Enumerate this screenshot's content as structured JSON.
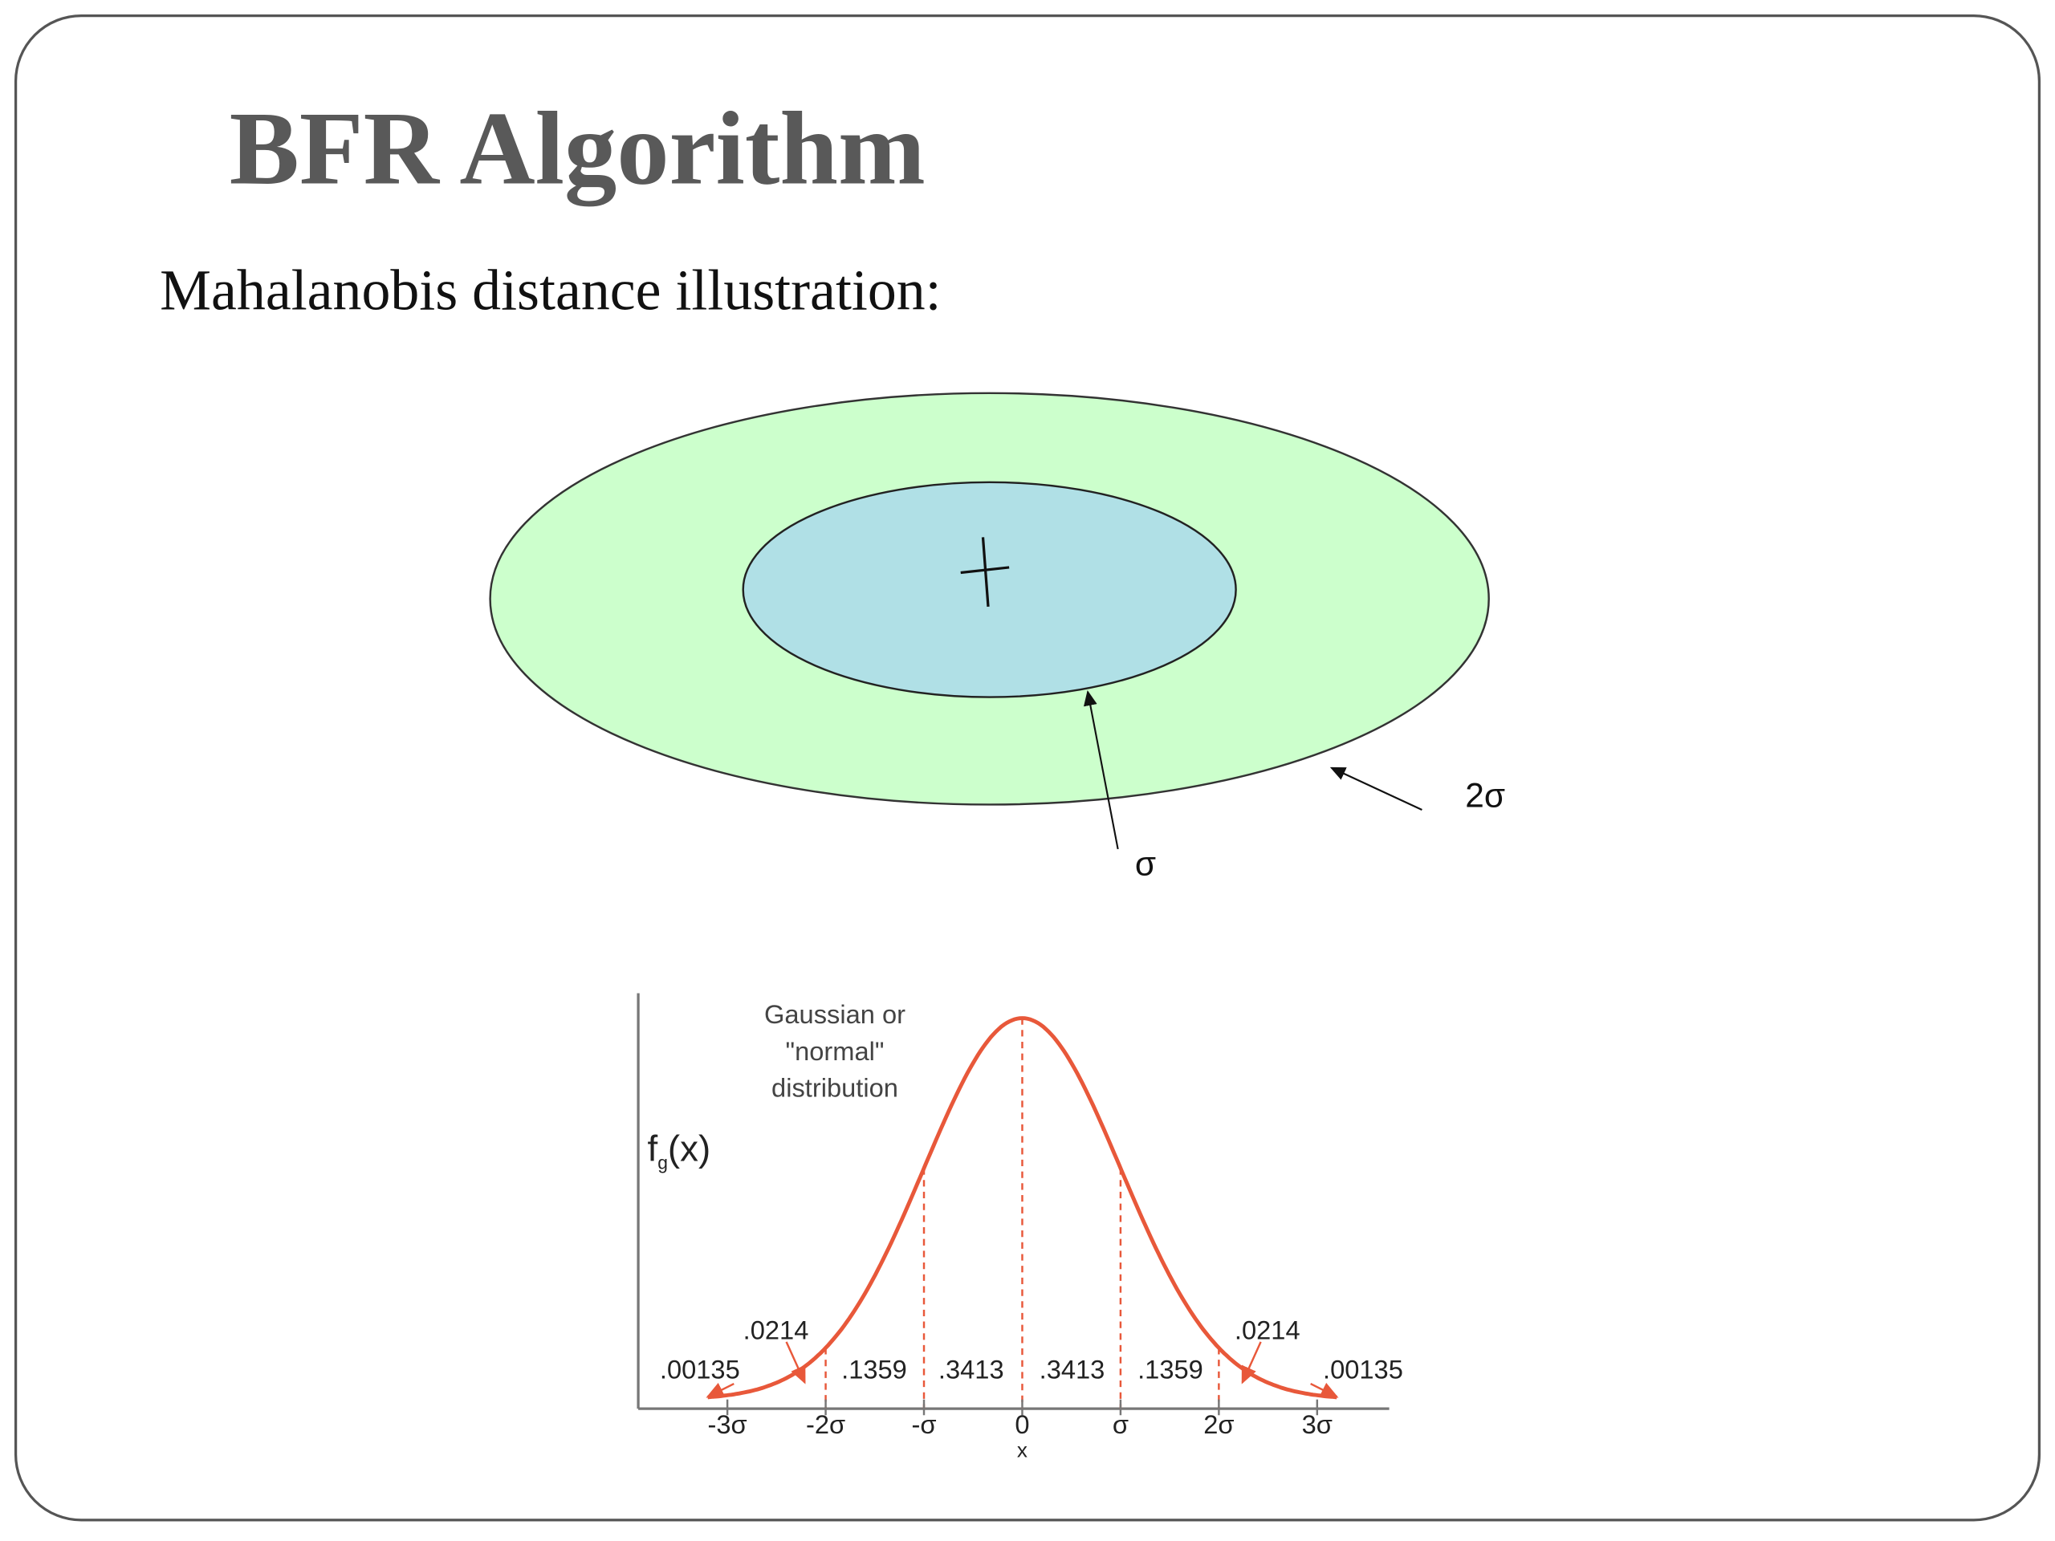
{
  "slide": {
    "title": "BFR Algorithm",
    "subtitle": "Mahalanobis distance illustration:"
  },
  "ellipse_figure": {
    "inner_label": "σ",
    "outer_label": "2σ"
  },
  "gaussian_figure": {
    "caption": [
      "Gaussian or",
      "\"normal\"",
      "distribution"
    ],
    "y_label": {
      "base": "f",
      "sub": "g",
      "rest": "(x)"
    },
    "area_labels": [
      ".00135",
      ".0214",
      ".1359",
      ".3413",
      ".3413",
      ".1359",
      ".0214",
      ".00135"
    ],
    "x_tick_labels": [
      "-3σ",
      "-2σ",
      "-σ",
      "0",
      "σ",
      "2σ",
      "3σ"
    ],
    "x_label": "x"
  }
}
